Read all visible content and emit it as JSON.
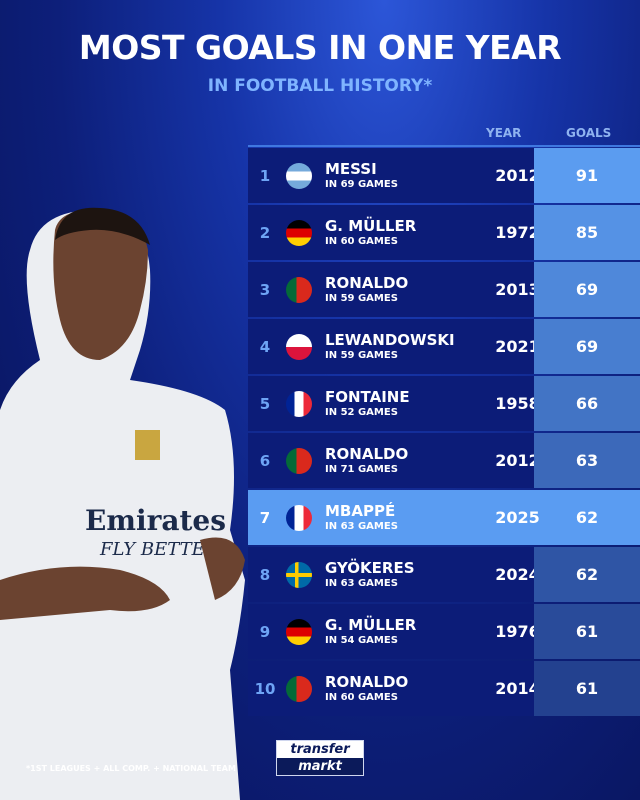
{
  "title": "MOST GOALS IN ONE YEAR",
  "subtitle": "IN FOOTBALL HISTORY*",
  "footnote": "*1ST LEAGUES + ALL COMP. + NATIONAL TEAM",
  "logo": {
    "line1": "transfer",
    "line2": "markt"
  },
  "colors": {
    "highlight": "#5a9cf2",
    "row": "#0c1c78",
    "goals_top": "#5b9cf0",
    "goals_bottom": "#23418f"
  },
  "chart_data": {
    "type": "table",
    "columns": [
      "YEAR",
      "GOALS"
    ],
    "rows": [
      {
        "rank": "1",
        "name": "MESSI",
        "games": "IN 69 GAMES",
        "flag": "argentina",
        "year": "2012",
        "goals": "91"
      },
      {
        "rank": "2",
        "name": "G. MÜLLER",
        "games": "IN 60 GAMES",
        "flag": "germany",
        "year": "1972",
        "goals": "85"
      },
      {
        "rank": "3",
        "name": "RONALDO",
        "games": "IN 59 GAMES",
        "flag": "portugal",
        "year": "2013",
        "goals": "69"
      },
      {
        "rank": "4",
        "name": "LEWANDOWSKI",
        "games": "IN 59 GAMES",
        "flag": "poland",
        "year": "2021",
        "goals": "69"
      },
      {
        "rank": "5",
        "name": "FONTAINE",
        "games": "IN 52 GAMES",
        "flag": "france",
        "year": "1958",
        "goals": "66"
      },
      {
        "rank": "6",
        "name": "RONALDO",
        "games": "IN 71 GAMES",
        "flag": "portugal",
        "year": "2012",
        "goals": "63"
      },
      {
        "rank": "7",
        "name": "MBAPPÉ",
        "games": "IN 63 GAMES",
        "flag": "france",
        "year": "2025",
        "goals": "62",
        "highlight": true
      },
      {
        "rank": "8",
        "name": "GYÖKERES",
        "games": "IN 63 GAMES",
        "flag": "sweden",
        "year": "2024",
        "goals": "62"
      },
      {
        "rank": "9",
        "name": "G. MÜLLER",
        "games": "IN 54 GAMES",
        "flag": "germany",
        "year": "1976",
        "goals": "61"
      },
      {
        "rank": "10",
        "name": "RONALDO",
        "games": "IN 60 GAMES",
        "flag": "portugal",
        "year": "2014",
        "goals": "61"
      }
    ]
  }
}
